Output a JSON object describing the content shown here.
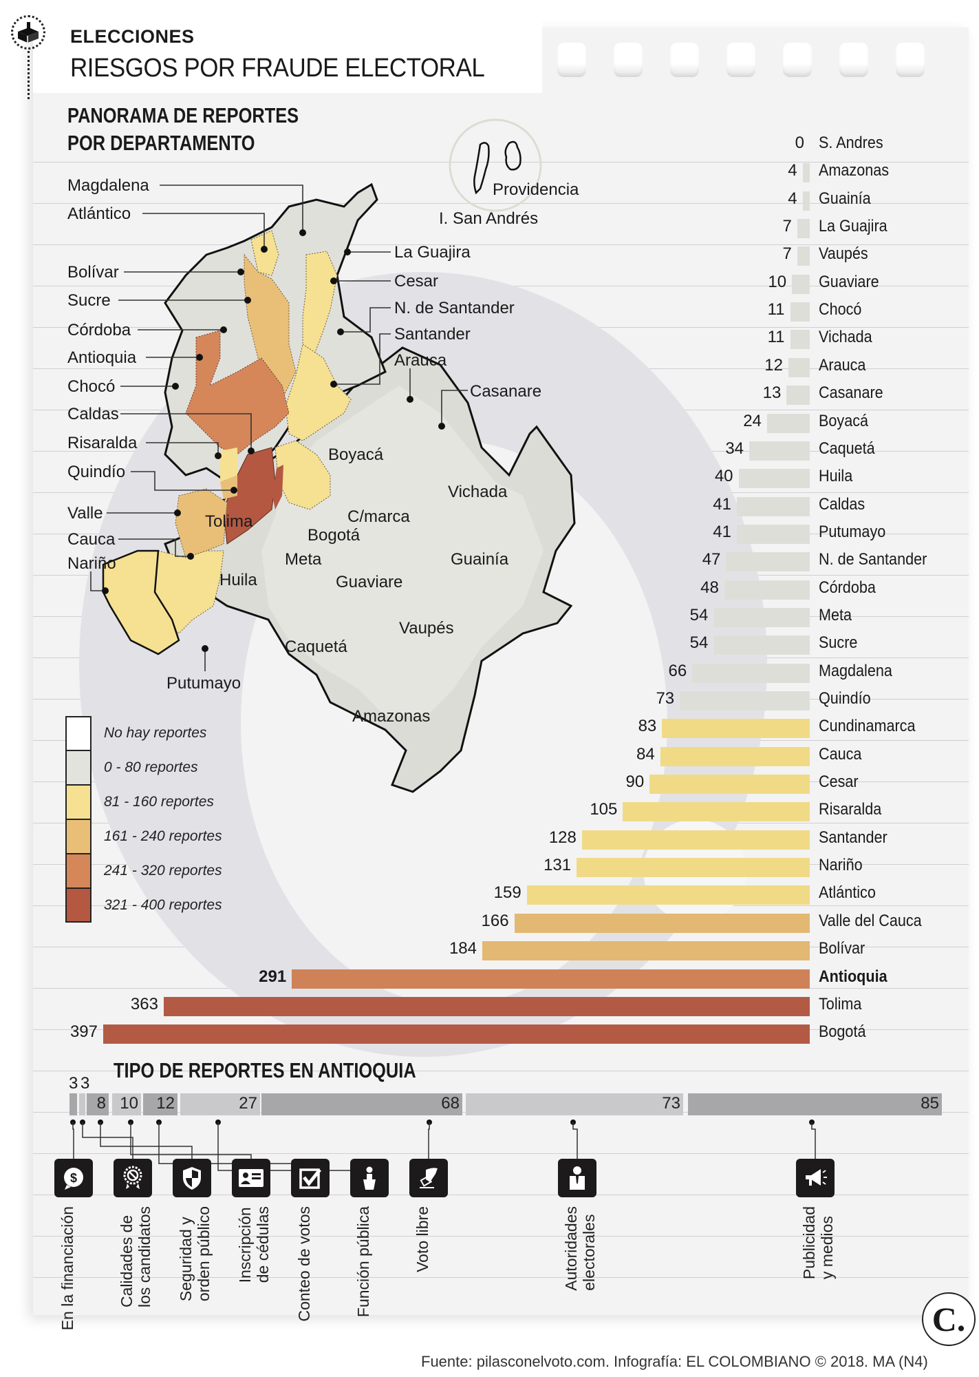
{
  "header": {
    "kicker": "ELECCIONES",
    "headline": "RIESGOS POR FRAUDE ELECTORAL",
    "icon": "ballot-box-icon"
  },
  "map_section": {
    "title_line1": "PANORAMA DE REPORTES",
    "title_line2": "POR DEPARTAMENTO",
    "inset": {
      "label_providencia": "Providencia",
      "label_san_andres": "I. San Andrés"
    },
    "callout_labels_left": [
      "Magdalena",
      "Atlántico",
      "Bolívar",
      "Sucre",
      "Córdoba",
      "Antioquia",
      "Chocó",
      "Caldas",
      "Risaralda",
      "Quindío",
      "Valle",
      "Cauca",
      "Nariño"
    ],
    "callout_labels_right": [
      "La Guajira",
      "Cesar",
      "N. de Santander",
      "Santander",
      "Arauca",
      "Casanare"
    ],
    "inline_labels": [
      "Boyacá",
      "Vichada",
      "C/marca",
      "Tolima",
      "Bogotá",
      "Meta",
      "Guainía",
      "Huila",
      "Guaviare",
      "Vaupés",
      "Caquetá",
      "Putumayo",
      "Amazonas"
    ]
  },
  "legend": {
    "items": [
      {
        "label": "No hay reportes",
        "color": "#ffffff"
      },
      {
        "label": "0 - 80 reportes",
        "color": "#e3e3de"
      },
      {
        "label": "81 - 160 reportes",
        "color": "#f5e191"
      },
      {
        "label": "161 - 240 reportes",
        "color": "#e9bf78"
      },
      {
        "label": "241 - 320 reportes",
        "color": "#d5875a"
      },
      {
        "label": "321 - 400 reportes",
        "color": "#b45842"
      }
    ]
  },
  "tipo_section": {
    "title": "TIPO DE REPORTES EN ANTIOQUIA"
  },
  "footer": {
    "source": "Fuente: pilasconelvoto.com. Infografía: EL COLOMBIANO © 2018. MA (N4)",
    "logo": "C."
  },
  "chart_data": [
    {
      "type": "bar",
      "orientation": "horizontal",
      "title": "PANORAMA DE REPORTES POR DEPARTAMENTO",
      "xlabel": "",
      "ylabel": "",
      "xlim": [
        0,
        400
      ],
      "grid": false,
      "highlight": "Antioquia",
      "categories": [
        "S. Andres",
        "Amazonas",
        "Guainía",
        "La Guajira",
        "Vaupés",
        "Guaviare",
        "Chocó",
        "Vichada",
        "Arauca",
        "Casanare",
        "Boyacá",
        "Caquetá",
        "Huila",
        "Caldas",
        "Putumayo",
        "N. de Santander",
        "Córdoba",
        "Meta",
        "Sucre",
        "Magdalena",
        "Quindío",
        "Cundinamarca",
        "Cauca",
        "Cesar",
        "Risaralda",
        "Santander",
        "Nariño",
        "Atlántico",
        "Valle del Cauca",
        "Bolívar",
        "Antioquia",
        "Tolima",
        "Bogotá"
      ],
      "values": [
        0,
        4,
        4,
        7,
        7,
        10,
        11,
        11,
        12,
        13,
        24,
        34,
        40,
        41,
        41,
        47,
        48,
        54,
        54,
        66,
        73,
        83,
        84,
        90,
        105,
        128,
        131,
        159,
        166,
        184,
        291,
        363,
        397
      ],
      "color_bins": [
        {
          "range": "0 - 80",
          "color": "#deded8"
        },
        {
          "range": "81 - 160",
          "color": "#f1da86"
        },
        {
          "range": "161 - 240",
          "color": "#e2b872"
        },
        {
          "range": "241 - 320",
          "color": "#cf8257"
        },
        {
          "range": "321 - 400",
          "color": "#b35a45"
        }
      ]
    },
    {
      "type": "bar",
      "orientation": "stacked-horizontal",
      "title": "TIPO DE REPORTES EN ANTIOQUIA",
      "categories": [
        "En la financiación",
        "Calidades de los candidatos",
        "Seguridad y orden público",
        "Inscripción de cédulas",
        "Conteo de votos",
        "Función pública",
        "Voto libre",
        "Autoridades electorales",
        "Publicidad y medios"
      ],
      "bar_segment_values": [
        3,
        3,
        8,
        10,
        12,
        27,
        68,
        73,
        85
      ],
      "icons": [
        "money-bubble-icon",
        "award-prohibited-icon",
        "shield-icon",
        "id-card-icon",
        "checkbox-icon",
        "podium-person-icon",
        "hand-ballot-icon",
        "official-person-icon",
        "megaphone-icon"
      ]
    }
  ]
}
